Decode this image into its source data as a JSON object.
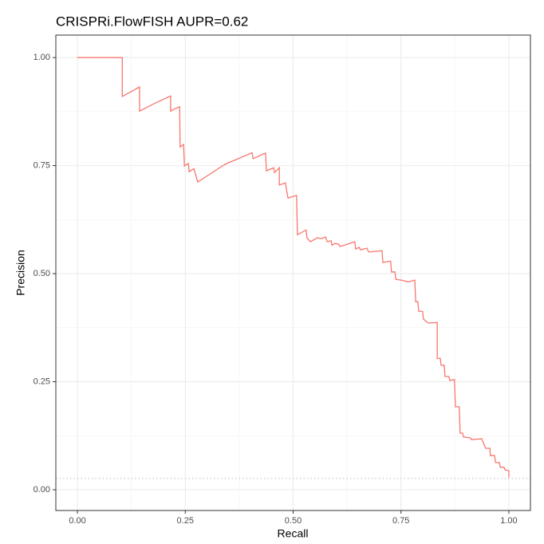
{
  "chart_data": {
    "type": "line",
    "title": "CRISPRi.FlowFISH AUPR=0.62",
    "x_label": "Recall",
    "y_label": "Precision",
    "xlim": [
      -0.05,
      1.05
    ],
    "ylim": [
      -0.048,
      1.052
    ],
    "xticks": [
      {
        "value": 0,
        "label": "0.00"
      },
      {
        "value": 0.25,
        "label": "0.25"
      },
      {
        "value": 0.5,
        "label": "0.50"
      },
      {
        "value": 0.75,
        "label": "0.75"
      },
      {
        "value": 1,
        "label": "1.00"
      }
    ],
    "yticks": [
      {
        "value": 0,
        "label": "0.00"
      },
      {
        "value": 0.25,
        "label": "0.25"
      },
      {
        "value": 0.5,
        "label": "0.50"
      },
      {
        "value": 0.75,
        "label": "0.75"
      },
      {
        "value": 1,
        "label": "1.00"
      }
    ],
    "minor_xticks": [
      0.125,
      0.375,
      0.625,
      0.875
    ],
    "minor_yticks": [
      0.125,
      0.375,
      0.625,
      0.875
    ],
    "grid": true,
    "baseline": 0.026,
    "series": [
      {
        "color": "#F8766D",
        "x": [
          0,
          0.104,
          0.104,
          0.124,
          0.144,
          0.144,
          0.181,
          0.216,
          0.216,
          0.227,
          0.237,
          0.238,
          0.246,
          0.248,
          0.257,
          0.259,
          0.27,
          0.279,
          0.342,
          0.405,
          0.407,
          0.436,
          0.438,
          0.455,
          0.457,
          0.468,
          0.468,
          0.482,
          0.488,
          0.508,
          0.51,
          0.53,
          0.532,
          0.54,
          0.556,
          0.566,
          0.575,
          0.579,
          0.588,
          0.59,
          0.597,
          0.606,
          0.608,
          0.616,
          0.643,
          0.645,
          0.653,
          0.656,
          0.671,
          0.675,
          0.706,
          0.708,
          0.726,
          0.728,
          0.736,
          0.738,
          0.751,
          0.767,
          0.782,
          0.784,
          0.789,
          0.791,
          0.8,
          0.802,
          0.81,
          0.813,
          0.834,
          0.834,
          0.841,
          0.843,
          0.85,
          0.852,
          0.861,
          0.863,
          0.874,
          0.876,
          0.885,
          0.887,
          0.893,
          0.895,
          0.911,
          0.913,
          0.937,
          0.946,
          0.956,
          0.957,
          0.967,
          0.969,
          0.978,
          0.98,
          0.989,
          0.991,
          1.0,
          1.0
        ],
        "values": [
          1,
          1,
          0.91,
          0.921,
          0.932,
          0.876,
          0.895,
          0.911,
          0.876,
          0.882,
          0.886,
          0.793,
          0.799,
          0.749,
          0.755,
          0.736,
          0.743,
          0.712,
          0.753,
          0.78,
          0.766,
          0.779,
          0.738,
          0.745,
          0.734,
          0.745,
          0.705,
          0.71,
          0.675,
          0.681,
          0.59,
          0.601,
          0.583,
          0.574,
          0.583,
          0.581,
          0.585,
          0.574,
          0.576,
          0.566,
          0.57,
          0.568,
          0.563,
          0.565,
          0.574,
          0.557,
          0.561,
          0.555,
          0.559,
          0.55,
          0.553,
          0.526,
          0.529,
          0.504,
          0.504,
          0.487,
          0.485,
          0.481,
          0.485,
          0.435,
          0.435,
          0.413,
          0.413,
          0.395,
          0.388,
          0.386,
          0.387,
          0.304,
          0.304,
          0.288,
          0.288,
          0.262,
          0.262,
          0.253,
          0.255,
          0.192,
          0.192,
          0.131,
          0.131,
          0.122,
          0.12,
          0.116,
          0.118,
          0.096,
          0.096,
          0.079,
          0.079,
          0.063,
          0.063,
          0.052,
          0.052,
          0.046,
          0.044,
          0.028
        ]
      }
    ]
  }
}
